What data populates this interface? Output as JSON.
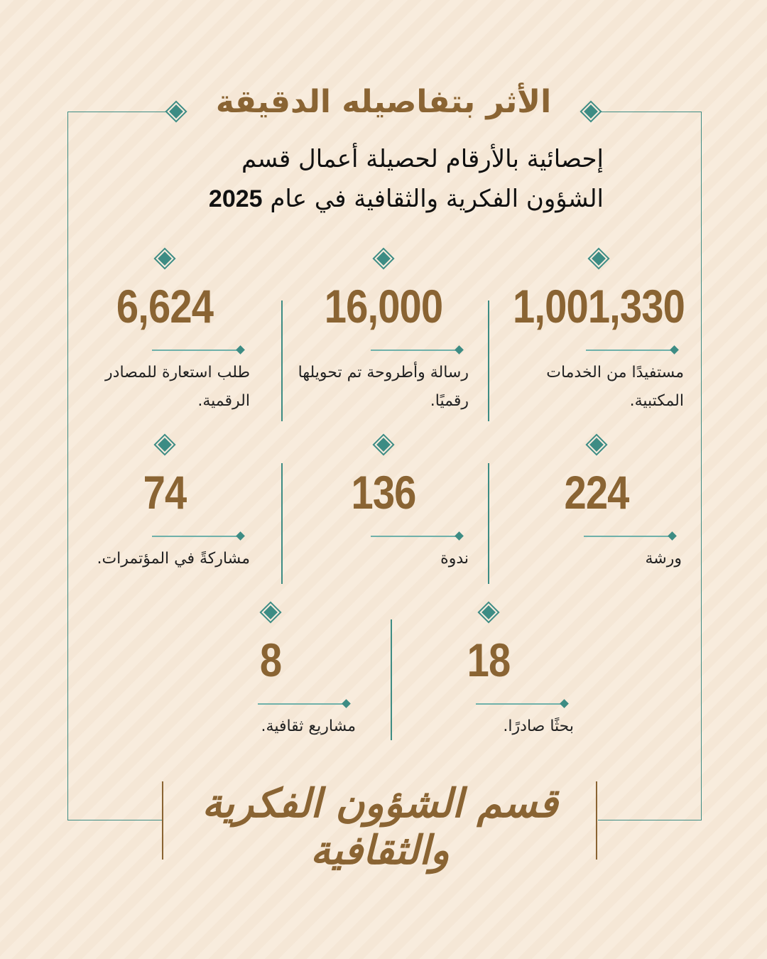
{
  "title": "الأثر بتفاصيله الدقيقة",
  "subtitle": {
    "line1": "إحصائية بالأرقام لحصيلة أعمال قسم",
    "line2": "الشؤون الفكرية والثقافية في عام",
    "year": "2025"
  },
  "stats": [
    {
      "value": "1,001,330",
      "label": "مستفيدًا من الخدمات المكتبية."
    },
    {
      "value": "16,000",
      "label": "رسالة وأطروحة تم تحويلها رقميًا."
    },
    {
      "value": "6,624",
      "label": "طلب استعارة للمصادر الرقمية."
    },
    {
      "value": "224",
      "label": "ورشة"
    },
    {
      "value": "136",
      "label": "ندوة"
    },
    {
      "value": "74",
      "label": "مشاركةً في المؤتمرات."
    },
    {
      "value": "18",
      "label": "بحثًا صادرًا."
    },
    {
      "value": "8",
      "label": "مشاريع ثقافية."
    }
  ],
  "logo": "قسم الشؤون الفكرية والثقافية",
  "colors": {
    "accent": "#3d8c84",
    "brand": "#8a6433",
    "background": "#f8ecdd"
  }
}
